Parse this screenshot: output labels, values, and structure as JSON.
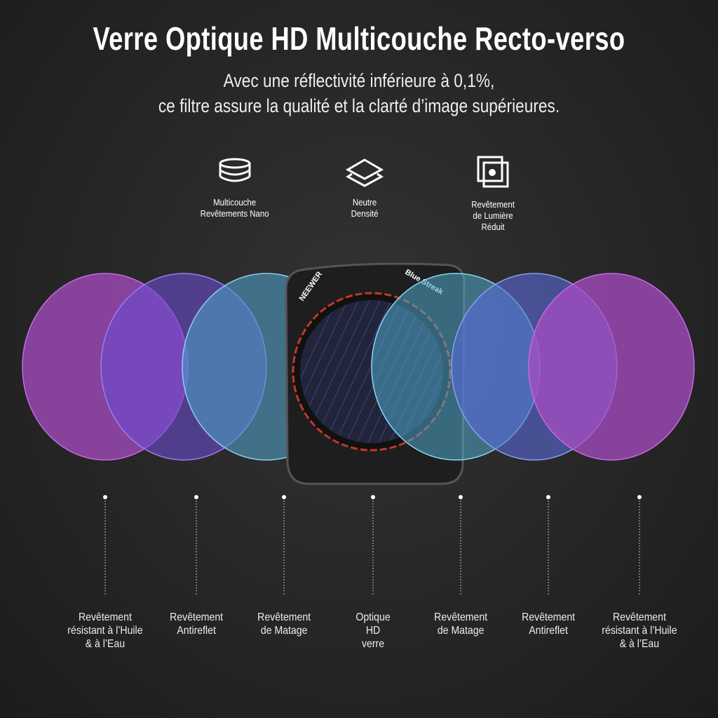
{
  "title": "Verre Optique HD Multicouche Recto-verso",
  "subtitle": [
    "Avec une réflectivité inférieure à 0,1%,",
    "ce filtre assure la qualité et la clarté d’image supérieures."
  ],
  "features": [
    {
      "icon": "stacked-discs-icon",
      "lines": [
        "Multicouche",
        "Revêtements Nano"
      ]
    },
    {
      "icon": "layers-icon",
      "lines": [
        "Neutre",
        "Densité"
      ]
    },
    {
      "icon": "overlapping-squares-icon",
      "lines": [
        "Revêtement",
        "de Lumière",
        "Réduit"
      ]
    }
  ],
  "product": {
    "brand": "NEEWER",
    "model": "Blue Streak"
  },
  "layers": [
    {
      "lines": [
        "Revêtement",
        "résistant à l’Huile",
        "& à l’Eau"
      ],
      "color": "#b04fc8"
    },
    {
      "lines": [
        "Revêtement",
        "Antireflet"
      ],
      "color": "#6a4fd0"
    },
    {
      "lines": [
        "Revêtement",
        "de Matage"
      ],
      "color": "#4f9fc8"
    },
    {
      "lines": [
        "Optique",
        "HD",
        "verre"
      ],
      "color": "#2a2a2a"
    },
    {
      "lines": [
        "Revêtement",
        "de Matage"
      ],
      "color": "#4fa8c8"
    },
    {
      "lines": [
        "Revêtement",
        "Antireflet"
      ],
      "color": "#5a6ad8"
    },
    {
      "lines": [
        "Revêtement",
        "résistant à l’Huile",
        "& à l’Eau"
      ],
      "color": "#b04fc8"
    }
  ]
}
